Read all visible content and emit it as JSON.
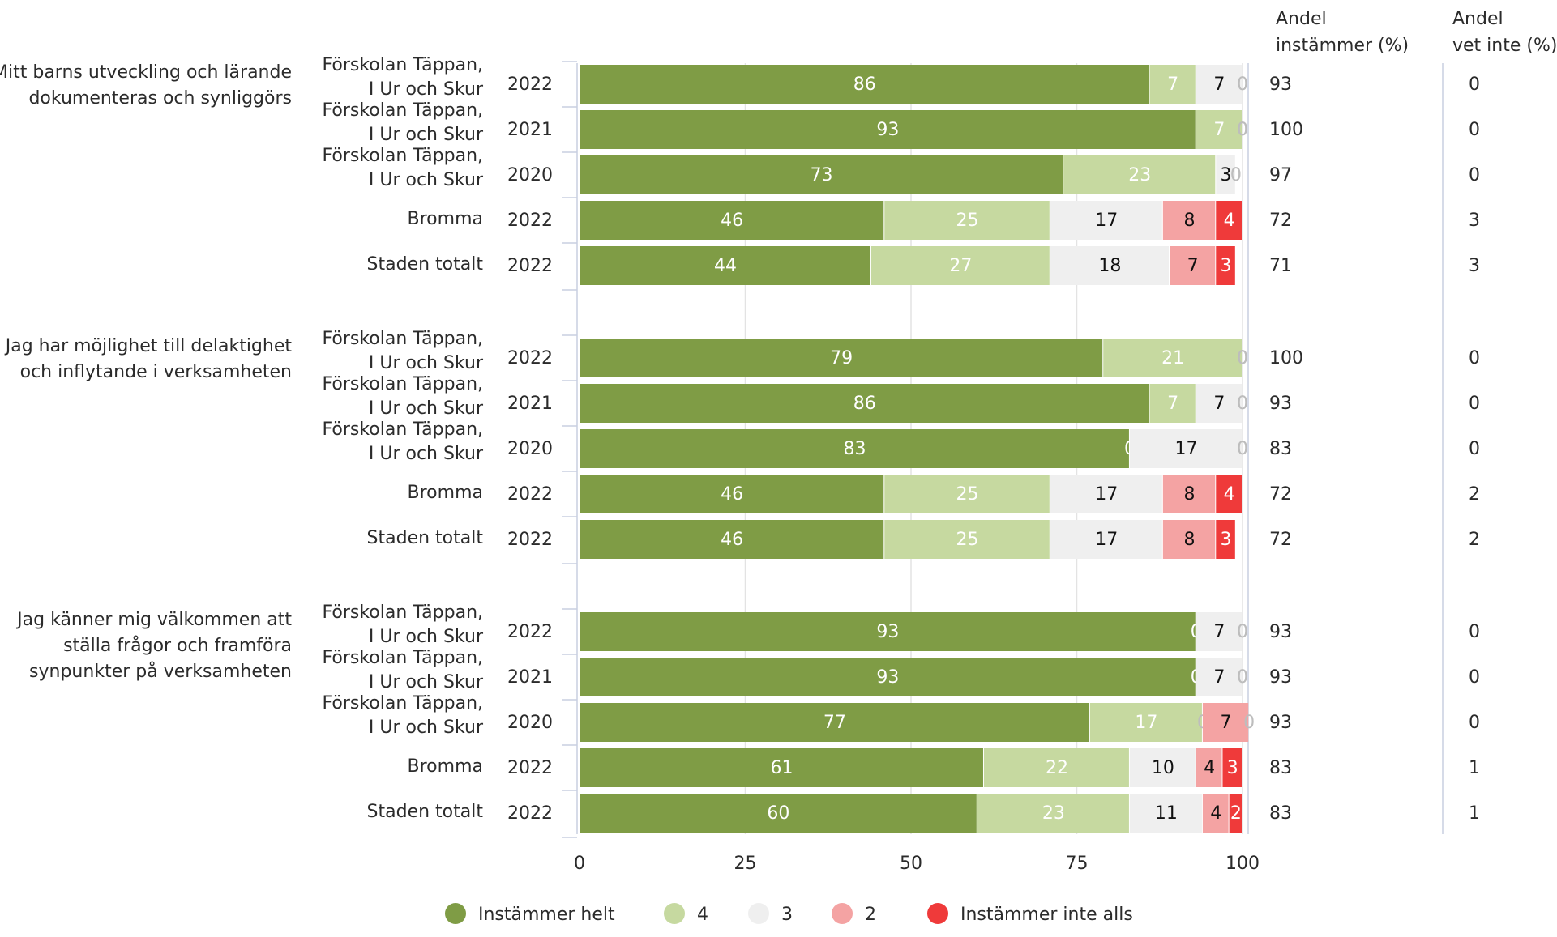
{
  "chart_data": {
    "type": "bar",
    "stacked": true,
    "orientation": "horizontal",
    "xlim": [
      0,
      100
    ],
    "x_ticks": [
      "0",
      "25",
      "50",
      "75",
      "100"
    ],
    "grid": true,
    "legend_position": "bottom",
    "column_headers": {
      "andel_instammer": [
        "Andel",
        "instämmer (%)"
      ],
      "andel_vet_inte": [
        "Andel",
        "vet inte (%)"
      ]
    },
    "series": [
      {
        "name": "Instämmer helt",
        "color": "#7f9c45"
      },
      {
        "name": "4",
        "color": "#c6d9a0"
      },
      {
        "name": "3",
        "color": "#efefef"
      },
      {
        "name": "2",
        "color": "#f4a3a3"
      },
      {
        "name": "Instämmer inte alls",
        "color": "#ef3a3a"
      }
    ],
    "groups": [
      {
        "question": [
          "Mitt barns utveckling och lärande",
          "dokumenteras och synliggörs"
        ],
        "rows": [
          {
            "unit": [
              "Förskolan Täppan,",
              "I Ur och Skur"
            ],
            "year": "2022",
            "values": [
              86,
              7,
              7,
              0,
              0
            ],
            "andel_instammer": "93",
            "andel_vet_inte": "0"
          },
          {
            "unit": [
              "Förskolan Täppan,",
              "I Ur och Skur"
            ],
            "year": "2021",
            "values": [
              93,
              7,
              0,
              0,
              0
            ],
            "andel_instammer": "100",
            "andel_vet_inte": "0"
          },
          {
            "unit": [
              "Förskolan Täppan,",
              "I Ur och Skur"
            ],
            "year": "2020",
            "values": [
              73,
              23,
              3,
              0,
              0
            ],
            "andel_instammer": "97",
            "andel_vet_inte": "0"
          },
          {
            "unit": [
              "Bromma"
            ],
            "year": "2022",
            "values": [
              46,
              25,
              17,
              8,
              4
            ],
            "andel_instammer": "72",
            "andel_vet_inte": "3"
          },
          {
            "unit": [
              "Staden totalt"
            ],
            "year": "2022",
            "values": [
              44,
              27,
              18,
              7,
              3
            ],
            "andel_instammer": "71",
            "andel_vet_inte": "3"
          }
        ]
      },
      {
        "question": [
          "Jag har möjlighet till delaktighet",
          "och inflytande i verksamheten"
        ],
        "rows": [
          {
            "unit": [
              "Förskolan Täppan,",
              "I Ur och Skur"
            ],
            "year": "2022",
            "values": [
              79,
              21,
              0,
              0,
              0
            ],
            "andel_instammer": "100",
            "andel_vet_inte": "0"
          },
          {
            "unit": [
              "Förskolan Täppan,",
              "I Ur och Skur"
            ],
            "year": "2021",
            "values": [
              86,
              7,
              7,
              0,
              0
            ],
            "andel_instammer": "93",
            "andel_vet_inte": "0"
          },
          {
            "unit": [
              "Förskolan Täppan,",
              "I Ur och Skur"
            ],
            "year": "2020",
            "values": [
              83,
              0,
              17,
              0,
              0
            ],
            "andel_instammer": "83",
            "andel_vet_inte": "0"
          },
          {
            "unit": [
              "Bromma"
            ],
            "year": "2022",
            "values": [
              46,
              25,
              17,
              8,
              4
            ],
            "andel_instammer": "72",
            "andel_vet_inte": "2"
          },
          {
            "unit": [
              "Staden totalt"
            ],
            "year": "2022",
            "values": [
              46,
              25,
              17,
              8,
              3
            ],
            "andel_instammer": "72",
            "andel_vet_inte": "2"
          }
        ]
      },
      {
        "question": [
          "Jag känner mig välkommen att",
          "ställa frågor och framföra",
          "synpunkter på verksamheten"
        ],
        "rows": [
          {
            "unit": [
              "Förskolan Täppan,",
              "I Ur och Skur"
            ],
            "year": "2022",
            "values": [
              93,
              0,
              7,
              0,
              0
            ],
            "andel_instammer": "93",
            "andel_vet_inte": "0"
          },
          {
            "unit": [
              "Förskolan Täppan,",
              "I Ur och Skur"
            ],
            "year": "2021",
            "values": [
              93,
              0,
              7,
              0,
              0
            ],
            "andel_instammer": "93",
            "andel_vet_inte": "0"
          },
          {
            "unit": [
              "Förskolan Täppan,",
              "I Ur och Skur"
            ],
            "year": "2020",
            "values": [
              77,
              17,
              0,
              7,
              0
            ],
            "andel_instammer": "93",
            "andel_vet_inte": "0"
          },
          {
            "unit": [
              "Bromma"
            ],
            "year": "2022",
            "values": [
              61,
              22,
              10,
              4,
              3
            ],
            "andel_instammer": "83",
            "andel_vet_inte": "1"
          },
          {
            "unit": [
              "Staden totalt"
            ],
            "year": "2022",
            "values": [
              60,
              23,
              11,
              4,
              2
            ],
            "andel_instammer": "83",
            "andel_vet_inte": "1"
          }
        ]
      }
    ]
  }
}
